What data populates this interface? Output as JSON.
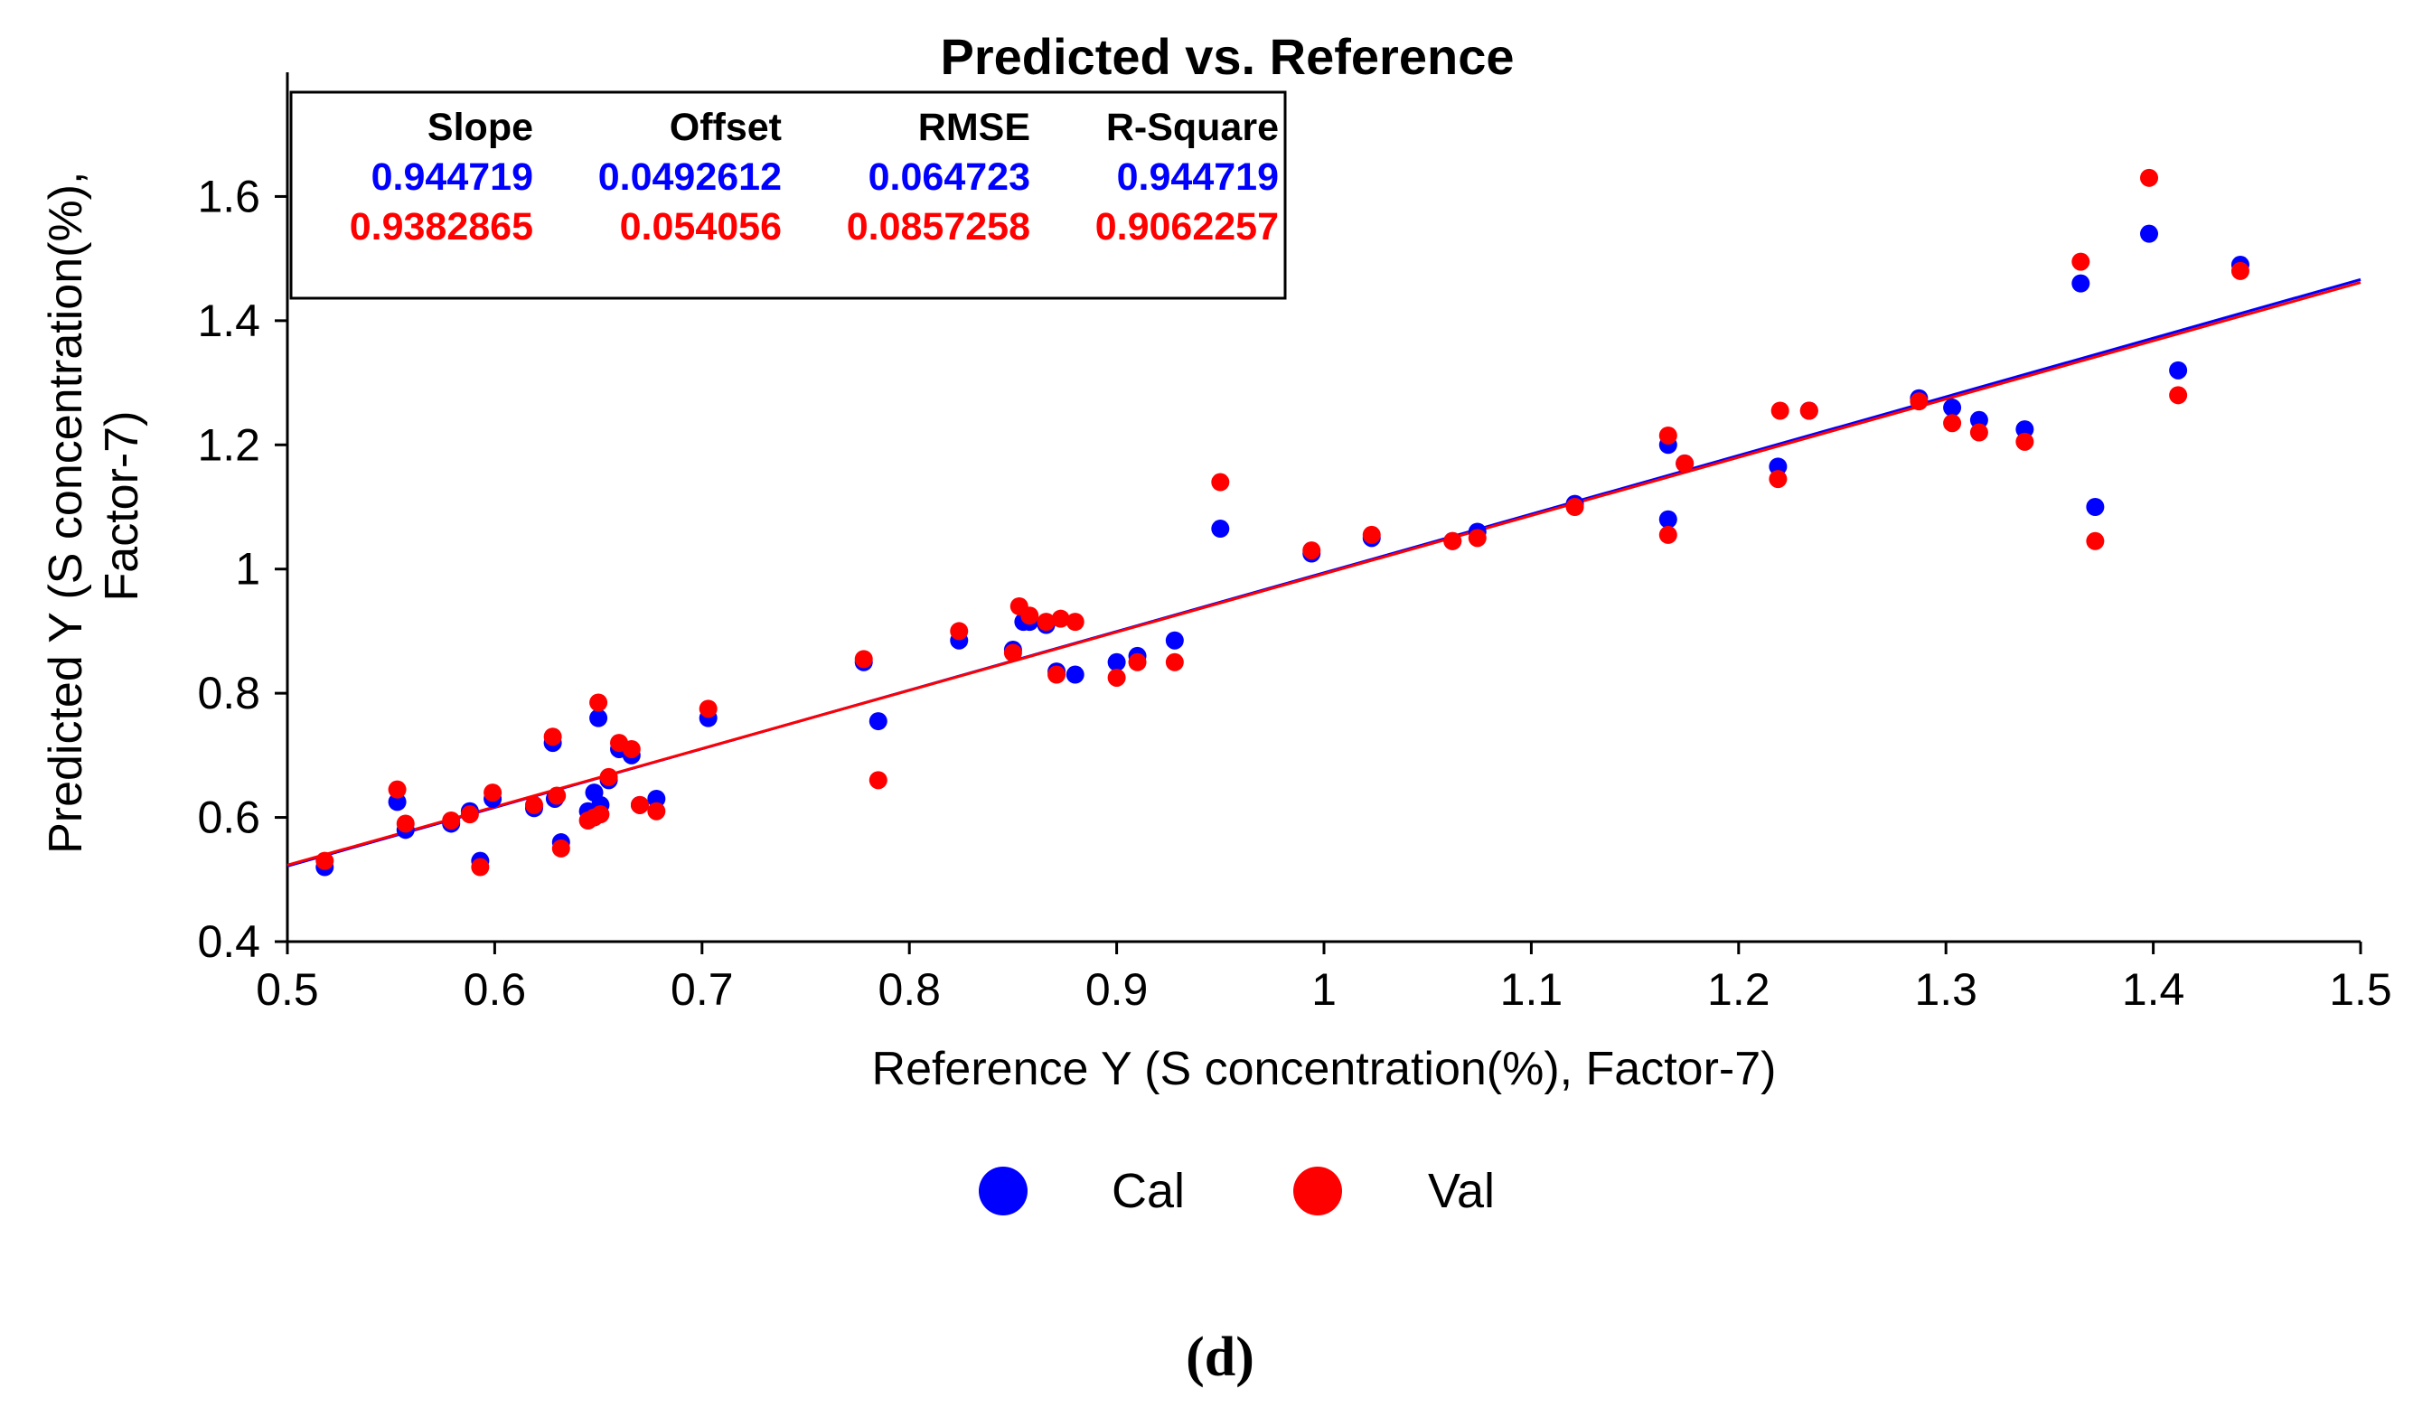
{
  "chart_data": {
    "type": "scatter",
    "title": "Predicted vs. Reference",
    "xlabel": "Reference Y (S concentration(%), Factor-7)",
    "ylabel_line1": "Predicted Y (S concentration(%),",
    "ylabel_line2": "Factor-7)",
    "xlim": [
      0.5,
      1.5
    ],
    "ylim": [
      0.4,
      1.8
    ],
    "xticks": [
      0.5,
      0.6,
      0.7,
      0.8,
      0.9,
      1.0,
      1.1,
      1.2,
      1.3,
      1.4,
      1.5
    ],
    "xtick_labels": [
      "0.5",
      "0.6",
      "0.7",
      "0.8",
      "0.9",
      "1",
      "1.1",
      "1.2",
      "1.3",
      "1.4",
      "1.5"
    ],
    "yticks": [
      0.4,
      0.6,
      0.8,
      1.0,
      1.2,
      1.4,
      1.6
    ],
    "ytick_labels": [
      "0.4",
      "0.6",
      "0.8",
      "1",
      "1.2",
      "1.4",
      "1.6"
    ],
    "grid": false,
    "panel_label": "(d)",
    "stats_table": {
      "headers": [
        "Slope",
        "Offset",
        "RMSE",
        "R-Square"
      ],
      "rows": [
        {
          "name": "Cal",
          "color": "#0000ff",
          "values": [
            "0.944719",
            "0.0492612",
            "0.064723",
            "0.944719"
          ]
        },
        {
          "name": "Val",
          "color": "#ff0000",
          "values": [
            "0.9382865",
            "0.054056",
            "0.0857258",
            "0.9062257"
          ]
        }
      ]
    },
    "legend": {
      "placement": "bottom-center",
      "entries": [
        {
          "name": "Cal",
          "color": "#0000ff"
        },
        {
          "name": "Val",
          "color": "#ff0000"
        }
      ]
    },
    "series": [
      {
        "name": "Cal",
        "color": "#0000ff",
        "fit": {
          "slope": 0.944719,
          "offset": 0.0492612
        },
        "x": [
          0.518,
          0.553,
          0.557,
          0.579,
          0.588,
          0.593,
          0.599,
          0.619,
          0.628,
          0.629,
          0.632,
          0.645,
          0.648,
          0.65,
          0.651,
          0.655,
          0.66,
          0.666,
          0.67,
          0.678,
          0.703,
          0.778,
          0.785,
          0.824,
          0.85,
          0.855,
          0.858,
          0.866,
          0.871,
          0.88,
          0.9,
          0.91,
          0.928,
          0.95,
          0.994,
          1.023,
          1.062,
          1.074,
          1.121,
          1.166,
          1.166,
          1.174,
          1.219,
          1.234,
          1.287,
          1.303,
          1.316,
          1.338,
          1.365,
          1.372,
          1.398,
          1.412,
          1.442
        ],
        "y": [
          0.52,
          0.625,
          0.58,
          0.59,
          0.61,
          0.53,
          0.63,
          0.615,
          0.72,
          0.63,
          0.56,
          0.61,
          0.64,
          0.76,
          0.62,
          0.66,
          0.71,
          0.7,
          0.62,
          0.63,
          0.76,
          0.85,
          0.755,
          0.885,
          0.87,
          0.915,
          0.915,
          0.91,
          0.835,
          0.83,
          0.85,
          0.86,
          0.885,
          1.065,
          1.025,
          1.05,
          1.045,
          1.06,
          1.105,
          1.2,
          1.08,
          1.17,
          1.165,
          1.255,
          1.275,
          1.26,
          1.24,
          1.225,
          1.46,
          1.1,
          1.54,
          1.32,
          1.49
        ]
      },
      {
        "name": "Val",
        "color": "#ff0000",
        "fit": {
          "slope": 0.9382865,
          "offset": 0.054056
        },
        "x": [
          0.518,
          0.553,
          0.557,
          0.579,
          0.588,
          0.593,
          0.599,
          0.619,
          0.628,
          0.63,
          0.632,
          0.645,
          0.648,
          0.65,
          0.651,
          0.655,
          0.66,
          0.666,
          0.67,
          0.678,
          0.703,
          0.778,
          0.785,
          0.824,
          0.85,
          0.853,
          0.858,
          0.866,
          0.871,
          0.873,
          0.88,
          0.9,
          0.91,
          0.928,
          0.95,
          0.994,
          1.023,
          1.062,
          1.074,
          1.121,
          1.166,
          1.166,
          1.174,
          1.219,
          1.22,
          1.234,
          1.287,
          1.303,
          1.316,
          1.338,
          1.365,
          1.372,
          1.398,
          1.412,
          1.442
        ],
        "y": [
          0.53,
          0.645,
          0.59,
          0.595,
          0.605,
          0.52,
          0.64,
          0.62,
          0.73,
          0.635,
          0.55,
          0.595,
          0.6,
          0.785,
          0.605,
          0.665,
          0.72,
          0.71,
          0.62,
          0.61,
          0.775,
          0.855,
          0.66,
          0.9,
          0.865,
          0.94,
          0.925,
          0.915,
          0.83,
          0.92,
          0.915,
          0.825,
          0.85,
          0.85,
          1.14,
          1.03,
          1.055,
          1.045,
          1.05,
          1.1,
          1.215,
          1.055,
          1.17,
          1.145,
          1.255,
          1.255,
          1.27,
          1.235,
          1.22,
          1.205,
          1.495,
          1.045,
          1.63,
          1.28,
          1.48
        ]
      }
    ]
  }
}
